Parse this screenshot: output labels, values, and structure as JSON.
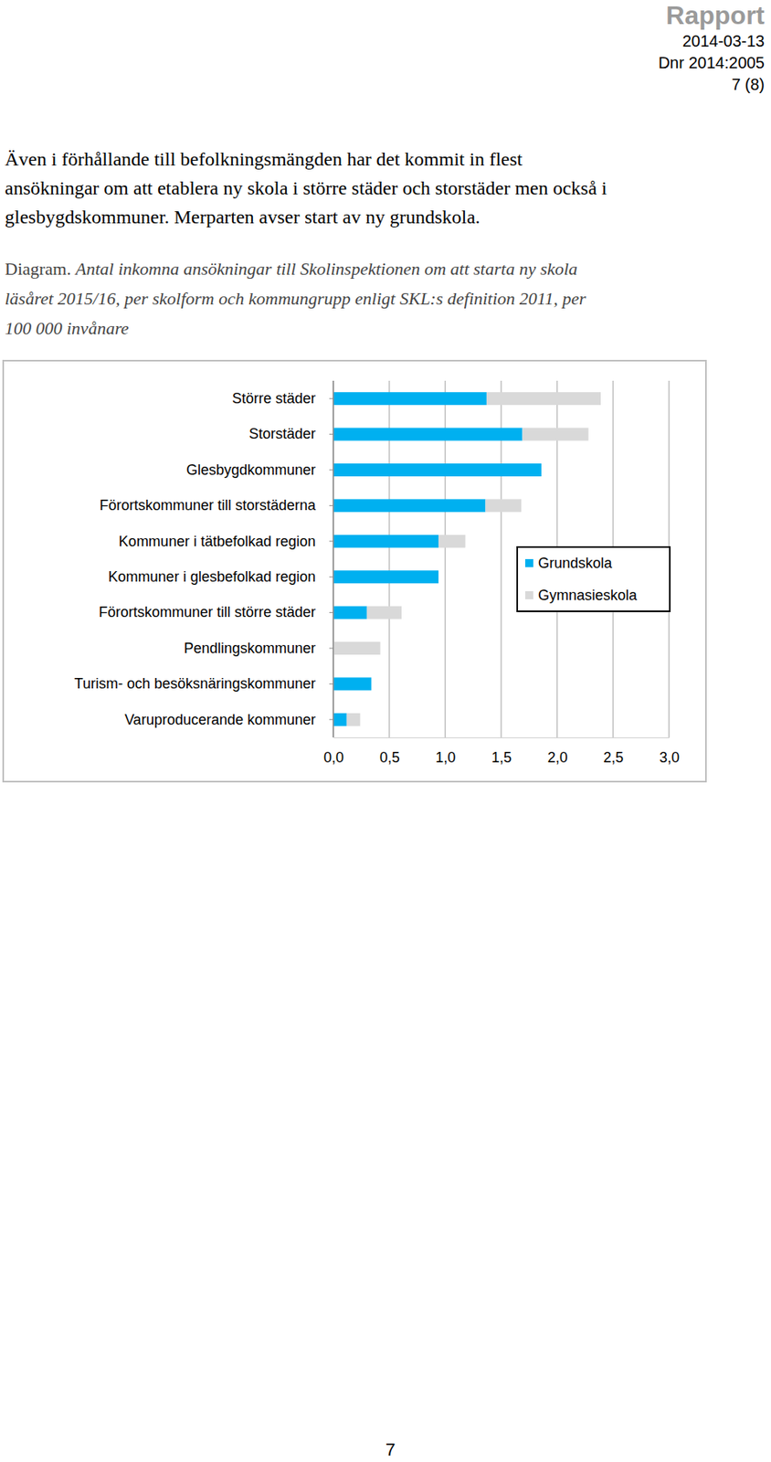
{
  "header": {
    "title": "Rapport",
    "date": "2014-03-13",
    "dnr": "Dnr 2014:2005",
    "page": "7 (8)"
  },
  "body": {
    "paragraph": [
      "Även i förhållande till befolkningsmängden har det kommit in flest",
      "ansökningar om att etablera ny skola i större städer och storstäder men också i",
      "glesbygdskommuner. Merparten avser start av ny grundskola."
    ],
    "caption_label": "Diagram.",
    "caption": [
      "Antal inkomna ansökningar till Skolinspektionen om att starta ny skola",
      "läsåret 2015/16, per skolform och kommungrupp enligt SKL:s definition 2011, per",
      "100 000 invånare"
    ]
  },
  "chart_data": {
    "type": "bar",
    "orientation": "horizontal",
    "stacked": true,
    "grid": true,
    "legend": "right",
    "categories": [
      "Större städer",
      "Storstäder",
      "Glesbygdkommuner",
      "Förortskommuner till storstäderna",
      "Kommuner i tätbefolkad region",
      "Kommuner i glesbefolkad region",
      "Förortskommuner till större städer",
      "Pendlingskommuner",
      "Turism- och besöksnäringskommuner",
      "Varuproducerande kommuner"
    ],
    "series": [
      {
        "name": "Grundskola",
        "color": "#00b0f0",
        "values": [
          1.37,
          1.69,
          1.86,
          1.36,
          0.94,
          0.94,
          0.3,
          0,
          0.34,
          0.12
        ]
      },
      {
        "name": "Gymnasieskola",
        "color": "#d9d9d9",
        "values": [
          1.02,
          0.59,
          0,
          0.32,
          0.24,
          0,
          0.31,
          0.42,
          0,
          0.12
        ]
      }
    ],
    "xlim": [
      0,
      3
    ],
    "xticks": [
      {
        "value": 0,
        "label": "0,0"
      },
      {
        "value": 0.5,
        "label": "0,5"
      },
      {
        "value": 1,
        "label": "1,0"
      },
      {
        "value": 1.5,
        "label": "1,5"
      },
      {
        "value": 2,
        "label": "2,0"
      },
      {
        "value": 2.5,
        "label": "2,5"
      },
      {
        "value": 3,
        "label": "3,0"
      }
    ]
  },
  "footer": {
    "page_number": "7"
  }
}
